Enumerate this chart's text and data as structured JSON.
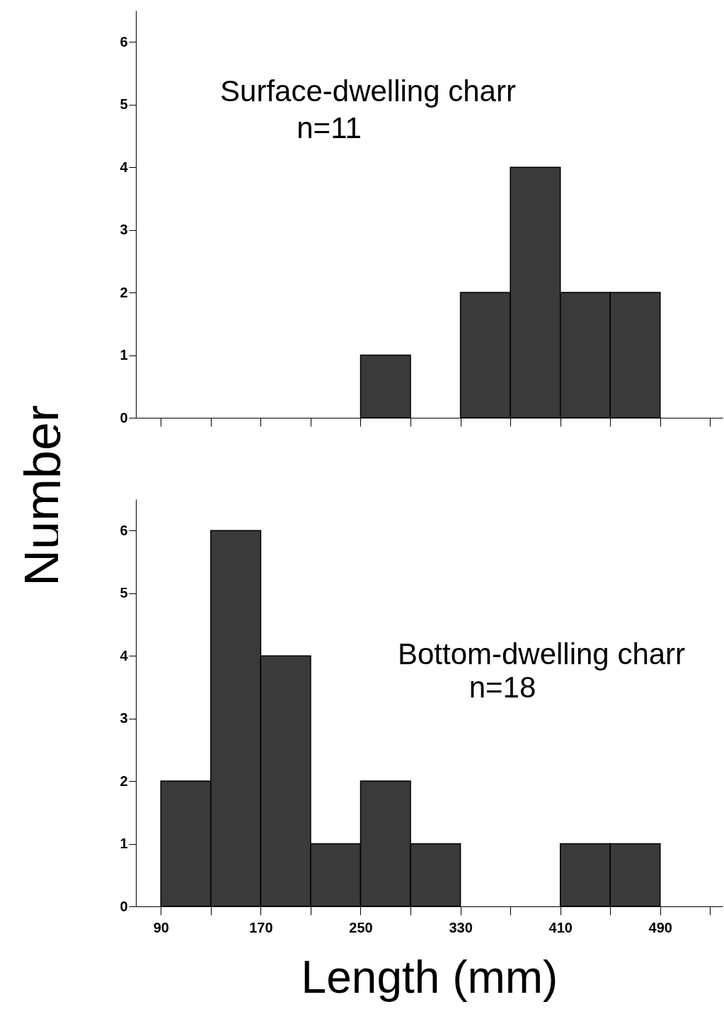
{
  "chart_data": [
    {
      "type": "histogram",
      "ylabel": "Number",
      "annotations": [
        "Surface-dwelling charr",
        "n=11"
      ],
      "bins": [
        90,
        130,
        170,
        210,
        250,
        290,
        330,
        370,
        410,
        450,
        490
      ],
      "values": [
        0,
        0,
        0,
        0,
        1,
        0,
        2,
        4,
        2,
        2
      ],
      "color": "#3a3a3a",
      "xlim": [
        70,
        540
      ],
      "xticks": [
        {
          "value": 90,
          "label": null
        },
        {
          "value": 130,
          "label": null
        },
        {
          "value": 170,
          "label": null
        },
        {
          "value": 210,
          "label": null
        },
        {
          "value": 250,
          "label": null
        },
        {
          "value": 290,
          "label": null
        },
        {
          "value": 330,
          "label": null
        },
        {
          "value": 370,
          "label": null
        },
        {
          "value": 410,
          "label": null
        },
        {
          "value": 450,
          "label": null
        },
        {
          "value": 490,
          "label": null
        },
        {
          "value": 530,
          "label": null
        }
      ],
      "ylim": [
        0,
        6.5
      ],
      "yticks": [
        0,
        1,
        2,
        3,
        4,
        5,
        6
      ],
      "tick_labels": "y"
    },
    {
      "type": "histogram",
      "xlabel": "Length (mm)",
      "annotations": [
        "Bottom-dwelling charr",
        "n=18"
      ],
      "bins": [
        90,
        130,
        170,
        210,
        250,
        290,
        330,
        370,
        410,
        450,
        490
      ],
      "values": [
        2,
        6,
        4,
        1,
        2,
        1,
        0,
        0,
        1,
        1
      ],
      "color": "#3a3a3a",
      "xlim": [
        70,
        540
      ],
      "xticks": [
        90,
        {
          "value": 130,
          "label": null
        },
        170,
        {
          "value": 210,
          "label": null
        },
        250,
        {
          "value": 290,
          "label": null
        },
        330,
        {
          "value": 370,
          "label": null
        },
        410,
        {
          "value": 450,
          "label": null
        },
        490,
        {
          "value": 530,
          "label": null
        }
      ],
      "ylim": [
        0,
        6.5
      ],
      "yticks": [
        0,
        1,
        2,
        3,
        4,
        5,
        6
      ]
    }
  ]
}
